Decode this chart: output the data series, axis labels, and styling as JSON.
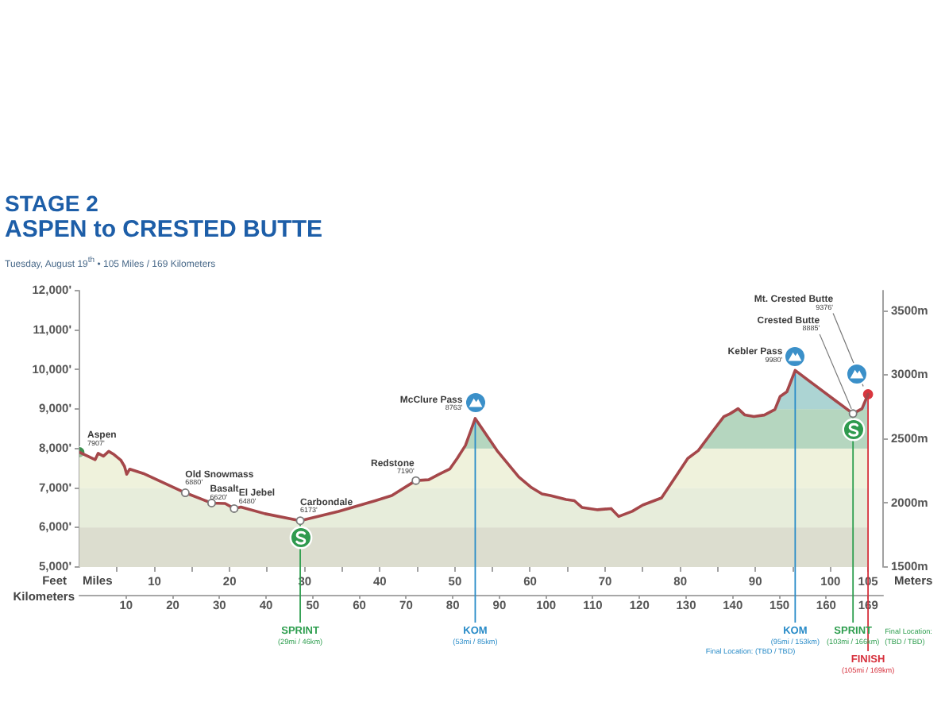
{
  "chart_data": {
    "type": "area",
    "title": "STAGE 2\nASPEN to CRESTED BUTTE",
    "subtitle": "Tuesday, August 19$^{th}$ • 105 Miles / 169 Kilometers",
    "xlabel": "Miles",
    "ylabel": "Feet",
    "y2label": "Meters",
    "x2label": "Kilometers",
    "xlim": [
      0,
      107
    ],
    "xticks": [
      {
        "value": 5,
        "label": null
      },
      10,
      {
        "value": 15,
        "label": null
      },
      20,
      {
        "value": 25,
        "label": null
      },
      30,
      {
        "value": 35,
        "label": null
      },
      40,
      {
        "value": 45,
        "label": null
      },
      50,
      {
        "value": 55,
        "label": null
      },
      60,
      {
        "value": 65,
        "label": null
      },
      70,
      {
        "value": 75,
        "label": null
      },
      80,
      {
        "value": 85,
        "label": null
      },
      90,
      {
        "value": 95,
        "label": null
      },
      100,
      105
    ],
    "x2lim": [
      0,
      172.2
    ],
    "x2ticks": [
      10,
      20,
      30,
      40,
      50,
      60,
      70,
      80,
      90,
      100,
      110,
      120,
      130,
      140,
      150,
      160,
      169
    ],
    "ylim": [
      5000,
      12000
    ],
    "yticks": [
      {
        "value": 5000,
        "label": "5,000'"
      },
      {
        "value": 6000,
        "label": "6,000'"
      },
      {
        "value": 7000,
        "label": "7,000'"
      },
      {
        "value": 8000,
        "label": "8,000'"
      },
      {
        "value": 9000,
        "label": "9,000'"
      },
      {
        "value": 10000,
        "label": "10,000'"
      },
      {
        "value": 11000,
        "label": "11,000'"
      },
      {
        "value": 12000,
        "label": "12,000'"
      }
    ],
    "y2lim": [
      1500,
      3660
    ],
    "y2ticks": [
      {
        "value": 1500,
        "label": "1500m"
      },
      {
        "value": 2000,
        "label": "2000m"
      },
      {
        "value": 2500,
        "label": "2500m"
      },
      {
        "value": 3000,
        "label": "3000m"
      },
      {
        "value": 3500,
        "label": "3500m"
      }
    ],
    "series": [
      {
        "color": "#a5474a",
        "x": [
          0,
          1.1,
          2.1,
          2.5,
          3.2,
          3.9,
          4.6,
          5.5,
          6.0,
          6.3,
          6.7,
          8.5,
          14.1,
          17.6,
          19.4,
          20.6,
          21.5,
          24.7,
          29.4,
          34.5,
          39.4,
          41.6,
          44.8,
          46.5,
          47.9,
          49.3,
          50.3,
          51.4,
          52.2,
          52.7,
          55.6,
          58.5,
          60.2,
          61.6,
          62.7,
          64.8,
          65.9,
          66.9,
          69.0,
          70.8,
          71.8,
          73.6,
          75.0,
          77.5,
          79.6,
          81.0,
          82.4,
          84.2,
          85.8,
          86.6,
          87.7,
          88.6,
          89.8,
          91.2,
          92.6,
          93.3,
          94.2,
          95.3,
          97.9,
          100.7,
          103.0,
          104.2,
          105
        ],
        "values": [
          7907,
          7810,
          7720,
          7880,
          7810,
          7930,
          7850,
          7710,
          7550,
          7350,
          7480,
          7370,
          6880,
          6620,
          6610,
          6480,
          6520,
          6350,
          6173,
          6410,
          6680,
          6810,
          7190,
          7210,
          7350,
          7480,
          7750,
          8080,
          8500,
          8763,
          7950,
          7280,
          7010,
          6850,
          6810,
          6710,
          6680,
          6510,
          6450,
          6480,
          6280,
          6410,
          6570,
          6750,
          7350,
          7750,
          7950,
          8410,
          8810,
          8880,
          9010,
          8850,
          8810,
          8850,
          8990,
          9320,
          9440,
          9980,
          9610,
          9210,
          8885,
          9010,
          9376
        ]
      },
      {
        "type": "scatter",
        "marker": "circle",
        "x": [
          0,
          105
        ],
        "values": [
          7907,
          9376
        ],
        "colors": [
          "#3d8f4f",
          "#d9363e"
        ]
      }
    ],
    "bands": [
      {
        "axis": "y",
        "from": 5000,
        "to": 6000,
        "color": "#dcddcf"
      },
      {
        "axis": "y",
        "from": 6000,
        "to": 7000,
        "color": "#e7eddb"
      },
      {
        "axis": "y",
        "from": 7000,
        "to": 8000,
        "color": "#eff2dc"
      },
      {
        "axis": "y",
        "from": 8000,
        "to": 9000,
        "color": "#b5d6bf"
      },
      {
        "axis": "y",
        "from": 9000,
        "to": 12000,
        "color": "#acd4d3"
      }
    ],
    "ref_lines": [
      {
        "axis": "x",
        "value": 29.4,
        "label": "SPRINT\n(29mi / 46km)",
        "color": "#2e9e4f"
      },
      {
        "axis": "x",
        "value": 52.7,
        "label": "KOM\n(53mi / 85km)",
        "color": "#2a8cc8"
      },
      {
        "axis": "x",
        "value": 95.3,
        "label": "KOM\n(95mi / 153km)\nFinal Location: (TBD / TBD)",
        "color": "#2a8cc8"
      },
      {
        "axis": "x",
        "value": 103,
        "label": "SPRINT\n(103mi / 166km)\nFinal Location:\n(TBD / TBD)",
        "color": "#2e9e4f"
      },
      {
        "axis": "x",
        "value": 105,
        "label": "FINISH\n(105mi / 169km)",
        "color": "#d6303c"
      }
    ],
    "annotations": [
      {
        "text": "Aspen\n7907'",
        "x": 0,
        "y": 7907
      },
      {
        "text": "Old Snowmass\n6880'",
        "x": 14.1,
        "y": 6880
      },
      {
        "text": "Basalt\n6620'",
        "x": 17.6,
        "y": 6620
      },
      {
        "text": "El Jebel\n6480'",
        "x": 20.6,
        "y": 6480
      },
      {
        "text": "Carbondale\n6173'",
        "x": 29.4,
        "y": 6173
      },
      {
        "text": "Redstone\n7190'",
        "x": 44.8,
        "y": 7190
      },
      {
        "text": "McClure Pass\n8763'",
        "x": 52.7,
        "y": 8763
      },
      {
        "text": "Kebler Pass\n9980'",
        "x": 95.3,
        "y": 9980
      },
      {
        "text": "Crested Butte\n8885'",
        "x": 103,
        "y": 8885
      },
      {
        "text": "Mt. Crested Butte\n9376'",
        "x": 105,
        "y": 9376
      }
    ]
  }
}
